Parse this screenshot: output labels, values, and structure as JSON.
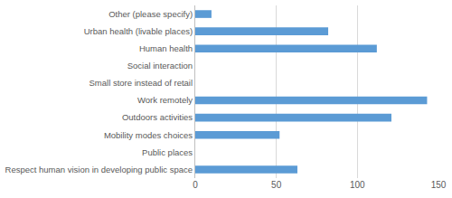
{
  "chart_data": {
    "type": "bar",
    "orientation": "horizontal",
    "categories": [
      "Respect human vision in developing public space",
      "Public places",
      "Mobility modes choices",
      "Outdoors activities",
      "Work remotely",
      "Small store instead of retail",
      "Social interaction",
      "Human health",
      "Urban health (livable places)",
      "Other (please specify)"
    ],
    "values": [
      63,
      0,
      52,
      121,
      143,
      0,
      0,
      112,
      82,
      10
    ],
    "color": "#5b9bd5",
    "xlim": [
      0,
      150
    ],
    "xticks": [
      0,
      50,
      100,
      150
    ],
    "grid": true
  }
}
